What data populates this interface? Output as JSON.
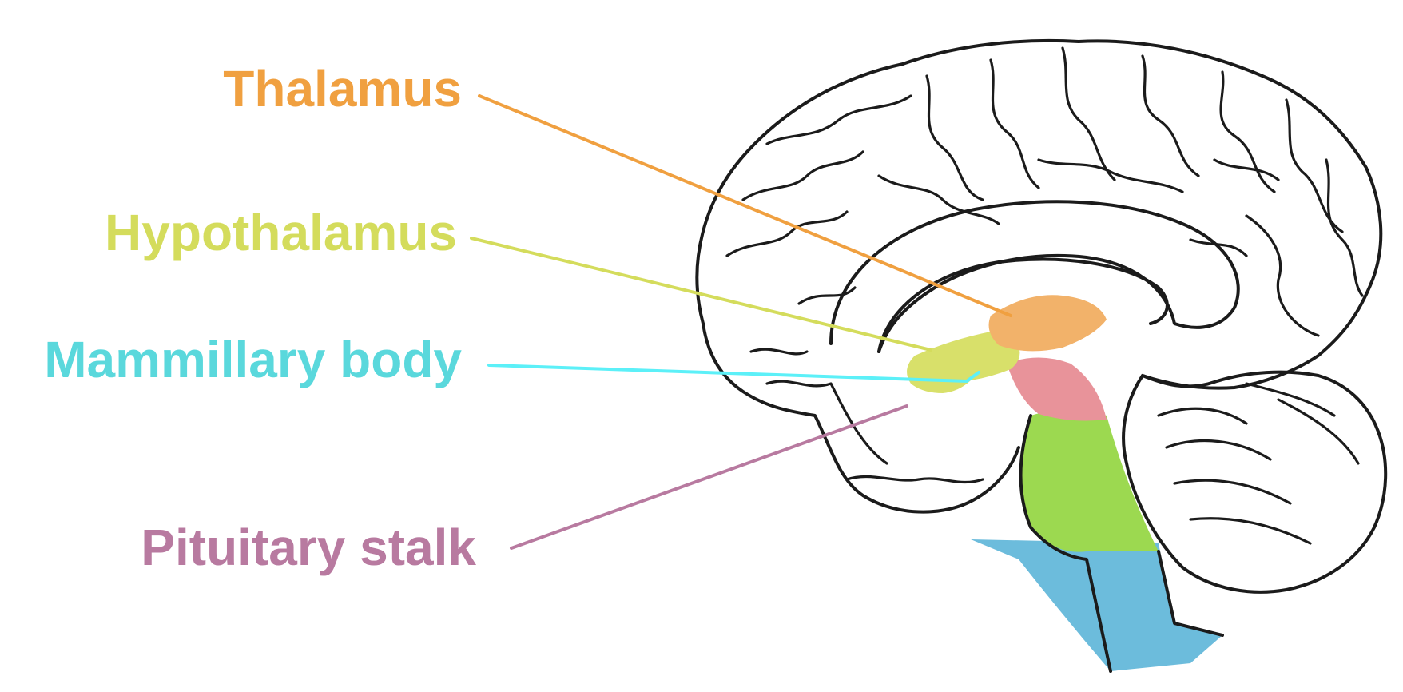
{
  "labels": {
    "thalamus": "Thalamus",
    "hypothalamus": "Hypothalamus",
    "mammillary_body": "Mammillary body",
    "pituitary_stalk": "Pituitary stalk"
  },
  "colors": {
    "thalamus": "#f0a040",
    "hypothalamus": "#d4dc5c",
    "mammillary_body": "#5ad8dc",
    "mammillary_line": "#5cf0f8",
    "pituitary_stalk": "#b87aa0",
    "thalamus_fill": "#f2b26a",
    "hypothalamus_fill": "#d8e06a",
    "pons_fill": "#e8939a",
    "medulla_fill": "#9cd950",
    "spinal_cord_fill": "#6cbcdc",
    "outline": "#1b1b1b"
  }
}
